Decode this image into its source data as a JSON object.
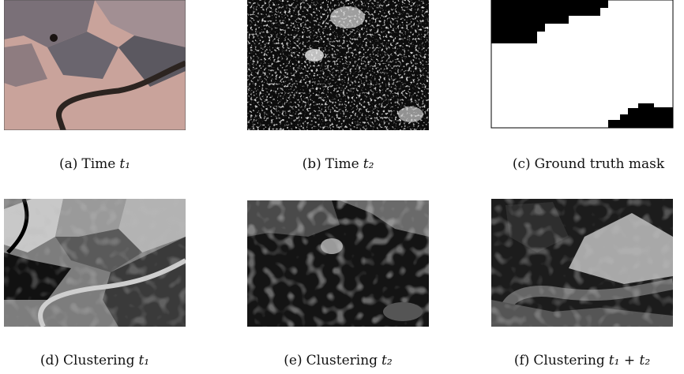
{
  "figure": {
    "panels": [
      {
        "label": "(a)",
        "text": "Time",
        "math": "t₁"
      },
      {
        "label": "(b)",
        "text": "Time",
        "math": "t₂"
      },
      {
        "label": "(c)",
        "text": "Ground truth mask",
        "math": null
      },
      {
        "label": "(d)",
        "text": "Clustering",
        "math": "t₁"
      },
      {
        "label": "(e)",
        "text": "Clustering",
        "math": "t₂"
      },
      {
        "label": "(f)",
        "text": "Clustering",
        "math": "t₁ + t₂"
      }
    ]
  }
}
